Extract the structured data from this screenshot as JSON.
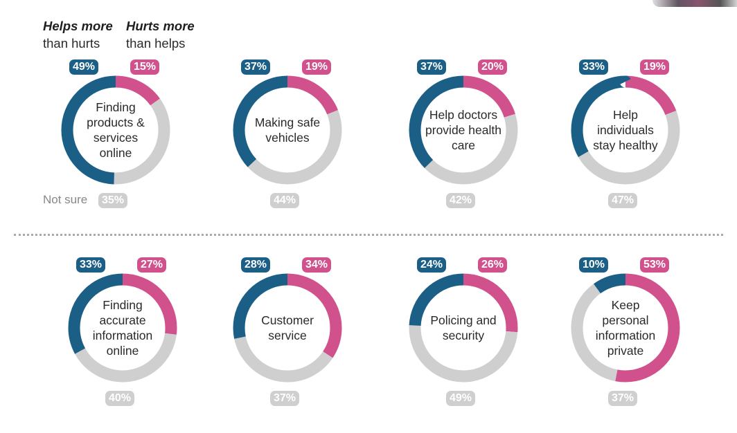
{
  "legend": {
    "helps_strong": "Helps more",
    "helps_sub": "than hurts",
    "hurts_strong": "Hurts more",
    "hurts_sub": "than helps",
    "not_sure": "Not sure"
  },
  "colors": {
    "helps": "#1b5f87",
    "hurts": "#d1518c",
    "not_sure": "#cfcfcf"
  },
  "chart_data": [
    {
      "type": "pie",
      "label": "Finding products & services online",
      "helps": 49,
      "hurts": 15,
      "not_sure": 35,
      "helps_label": "49%",
      "hurts_label": "15%",
      "not_sure_label": "35%"
    },
    {
      "type": "pie",
      "label": "Making safe vehicles",
      "helps": 37,
      "hurts": 19,
      "not_sure": 44,
      "helps_label": "37%",
      "hurts_label": "19%",
      "not_sure_label": "44%"
    },
    {
      "type": "pie",
      "label": "Help doctors provide health care",
      "helps": 37,
      "hurts": 20,
      "not_sure": 42,
      "helps_label": "37%",
      "hurts_label": "20%",
      "not_sure_label": "42%"
    },
    {
      "type": "pie",
      "label": "Help individuals stay healthy",
      "helps": 33,
      "hurts": 19,
      "not_sure": 47,
      "helps_label": "33%",
      "hurts_label": "19%",
      "not_sure_label": "47%"
    },
    {
      "type": "pie",
      "label": "Finding accurate information online",
      "helps": 33,
      "hurts": 27,
      "not_sure": 40,
      "helps_label": "33%",
      "hurts_label": "27%",
      "not_sure_label": "40%"
    },
    {
      "type": "pie",
      "label": "Customer service",
      "helps": 28,
      "hurts": 34,
      "not_sure": 37,
      "helps_label": "28%",
      "hurts_label": "34%",
      "not_sure_label": "37%"
    },
    {
      "type": "pie",
      "label": "Policing and security",
      "helps": 24,
      "hurts": 26,
      "not_sure": 49,
      "helps_label": "24%",
      "hurts_label": "26%",
      "not_sure_label": "49%"
    },
    {
      "type": "pie",
      "label": "Keep personal information private",
      "helps": 10,
      "hurts": 53,
      "not_sure": 37,
      "helps_label": "10%",
      "hurts_label": "53%",
      "not_sure_label": "37%"
    }
  ]
}
